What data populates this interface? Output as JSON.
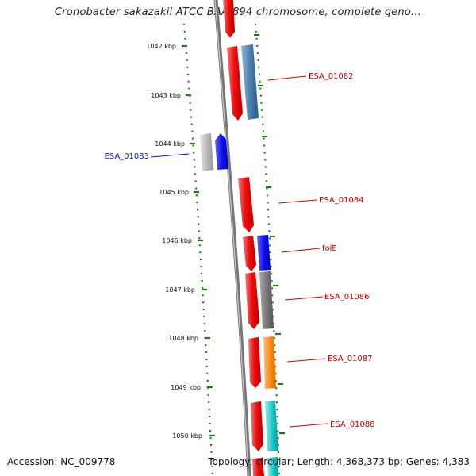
{
  "title": "Cronobacter sakazakii ATCC BAA-894 chromosome, complete geno...",
  "footer": {
    "accession": "Accession: NC_009778",
    "summary": "Topology: circular; Length: 4,368,373 bp; Genes: 4,383"
  },
  "ruler_labels": [
    "1042 kbp",
    "1043 kbp",
    "1044 kbp",
    "1045 kbp",
    "1046 kbp",
    "1047 kbp",
    "1048 kbp",
    "1049 kbp",
    "1050 kbp"
  ],
  "gene_labels": [
    "ESA_01082",
    "ESA_01083",
    "ESA_01084",
    "folE",
    "ESA_01086",
    "ESA_01087",
    "ESA_01088"
  ],
  "colors": {
    "red": "#ee1111",
    "blue": "#1111dd",
    "steel_blue": "#4f7fae",
    "gray": "#777777",
    "light_gray": "#bbbbbb",
    "orange": "#ff8c1a",
    "cyan": "#22cccc",
    "tick_green": "#1f7a1f",
    "label_blue": "#0a1bb0",
    "label_red": "#cc0000"
  }
}
